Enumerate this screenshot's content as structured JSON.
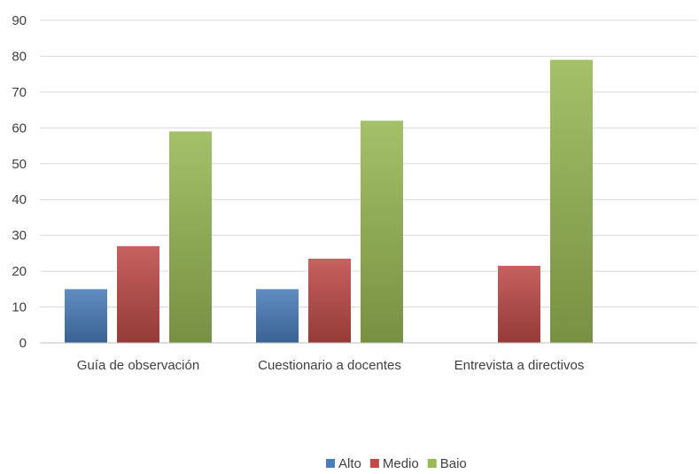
{
  "chart_data": {
    "type": "bar",
    "title": "",
    "xlabel": "",
    "ylabel": "",
    "categories": [
      "Guía de observación",
      "Cuestionario a docentes",
      "Entrevista a directivos"
    ],
    "series": [
      {
        "name": "Alto",
        "values": [
          15,
          15,
          0
        ],
        "color": "#4a7ebb"
      },
      {
        "name": "Medio",
        "values": [
          27,
          23.5,
          21.5
        ],
        "color": "#be4b48"
      },
      {
        "name": "Baio",
        "values": [
          59,
          62,
          79
        ],
        "color": "#98b954"
      }
    ],
    "ylim": [
      0,
      90
    ],
    "yticks": [
      0,
      10,
      20,
      30,
      40,
      50,
      60,
      70,
      80,
      90
    ],
    "grid": true,
    "legend": "bottom-center"
  }
}
